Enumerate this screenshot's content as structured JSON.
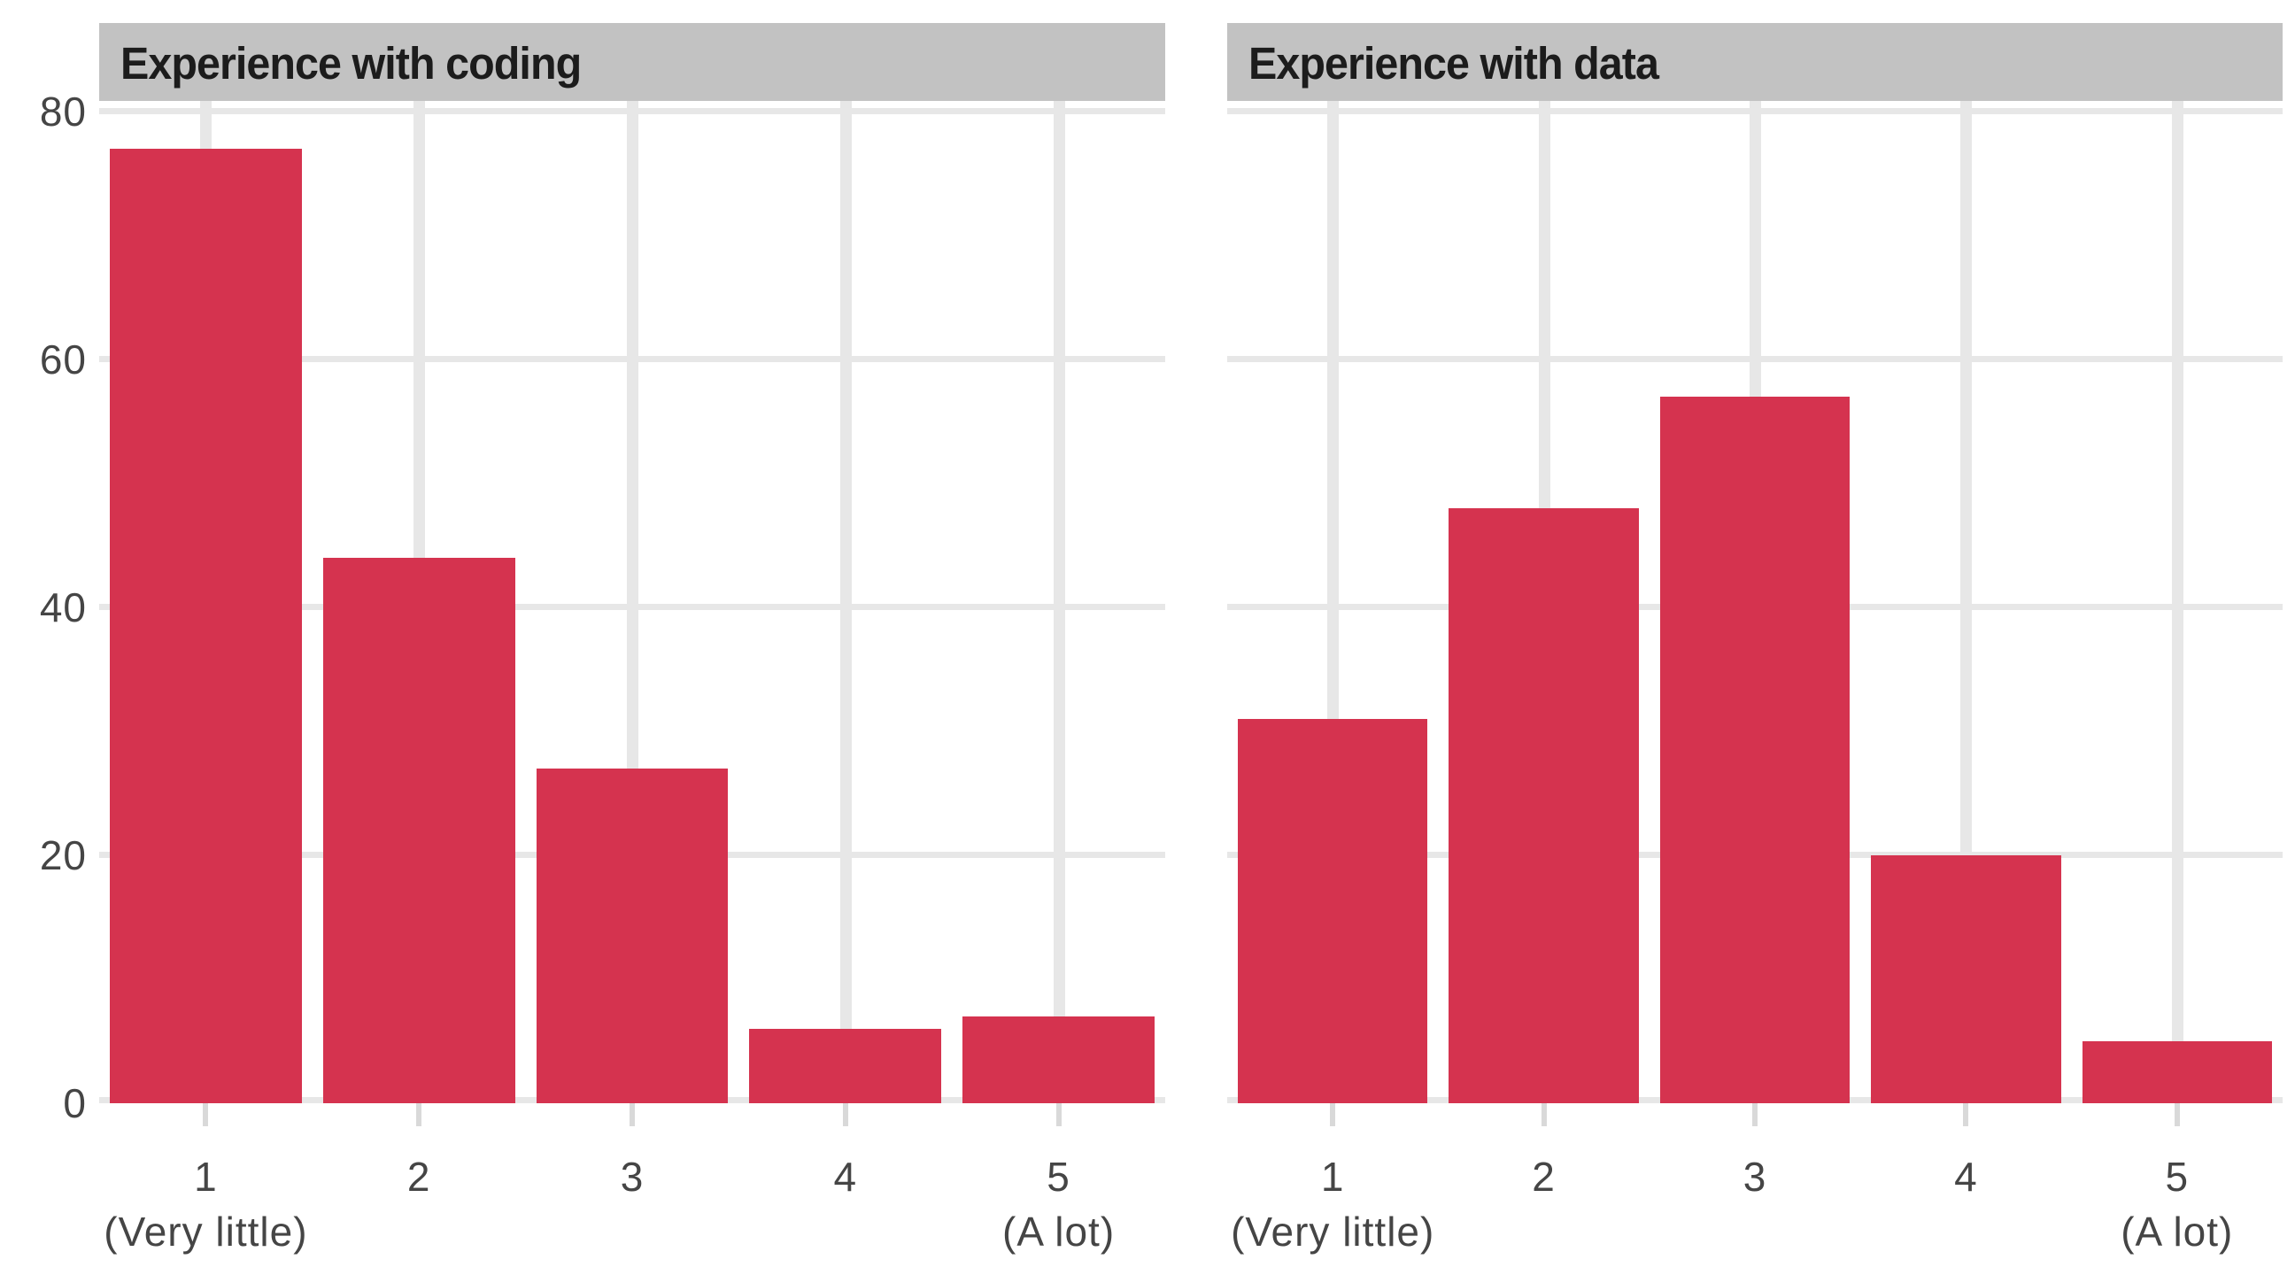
{
  "chart_data": {
    "type": "bar",
    "facets": [
      {
        "title": "Experience with coding",
        "values": [
          77,
          44,
          27,
          6,
          7
        ]
      },
      {
        "title": "Experience with data",
        "values": [
          31,
          48,
          57,
          20,
          5
        ]
      }
    ],
    "categories": [
      {
        "label": "1",
        "note": "(Very little)"
      },
      {
        "label": "2",
        "note": ""
      },
      {
        "label": "3",
        "note": ""
      },
      {
        "label": "4",
        "note": ""
      },
      {
        "label": "5",
        "note": "(A lot)"
      }
    ],
    "xlabel": "",
    "ylabel": "",
    "yticks": [
      0,
      20,
      40,
      60,
      80
    ],
    "ylim": [
      0,
      80.85
    ],
    "grid": true,
    "legend_position": "none",
    "bar_color": "#d5334f",
    "strip_background": "#c2c2c2",
    "gridline_color": "#e7e7e7",
    "tick_mark_color": "#d9d9d9",
    "axis_text_color": "#454545",
    "title_text_color": "#1c1c1c"
  }
}
